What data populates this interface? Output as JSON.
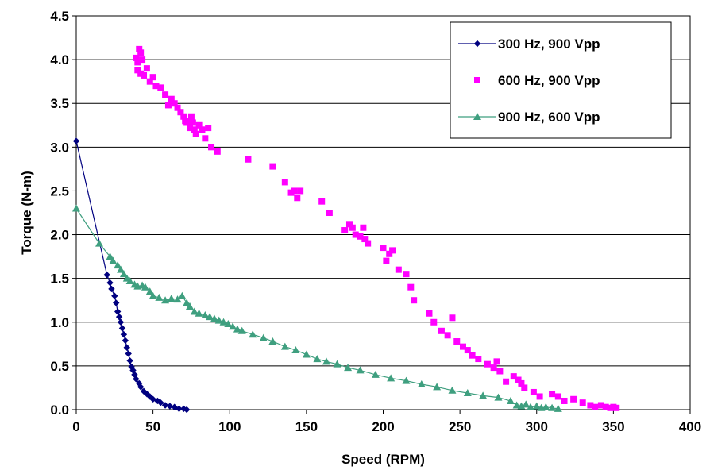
{
  "chart_data": {
    "type": "scatter",
    "title": "",
    "xlabel": "Speed (RPM)",
    "ylabel": "Torque (N-m)",
    "xlim": [
      0,
      400
    ],
    "ylim": [
      0,
      4.5
    ],
    "x_ticks": [
      "0",
      "50",
      "100",
      "150",
      "200",
      "250",
      "300",
      "350",
      "400"
    ],
    "y_ticks": [
      "0.0",
      "0.5",
      "1.0",
      "1.5",
      "2.0",
      "2.5",
      "3.0",
      "3.5",
      "4.0",
      "4.5"
    ],
    "grid": "horizontal",
    "legend_position": "top-right",
    "series": [
      {
        "name": "300 Hz, 900 Vpp",
        "color": "#000080",
        "marker": "diamond",
        "line": true,
        "points": [
          [
            0,
            3.07
          ],
          [
            20,
            1.54
          ],
          [
            22,
            1.45
          ],
          [
            23,
            1.38
          ],
          [
            25,
            1.3
          ],
          [
            26,
            1.22
          ],
          [
            27,
            1.12
          ],
          [
            28,
            1.06
          ],
          [
            29,
            1.0
          ],
          [
            30,
            0.93
          ],
          [
            31,
            0.86
          ],
          [
            32,
            0.79
          ],
          [
            33,
            0.71
          ],
          [
            34,
            0.64
          ],
          [
            35,
            0.56
          ],
          [
            36,
            0.49
          ],
          [
            37,
            0.45
          ],
          [
            38,
            0.4
          ],
          [
            39,
            0.35
          ],
          [
            41,
            0.3
          ],
          [
            42,
            0.26
          ],
          [
            44,
            0.21
          ],
          [
            46,
            0.18
          ],
          [
            48,
            0.15
          ],
          [
            50,
            0.12
          ],
          [
            53,
            0.1
          ],
          [
            55,
            0.08
          ],
          [
            58,
            0.05
          ],
          [
            61,
            0.04
          ],
          [
            64,
            0.03
          ],
          [
            67,
            0.01
          ],
          [
            70,
            0.01
          ],
          [
            72,
            0.0
          ]
        ]
      },
      {
        "name": "600 Hz, 900 Vpp",
        "color": "#ff00ff",
        "marker": "square",
        "line": false,
        "points": [
          [
            39,
            4.02
          ],
          [
            40,
            3.97
          ],
          [
            41,
            4.12
          ],
          [
            42,
            4.08
          ],
          [
            43,
            4.0
          ],
          [
            40,
            3.88
          ],
          [
            42,
            3.84
          ],
          [
            44,
            3.82
          ],
          [
            46,
            3.9
          ],
          [
            48,
            3.75
          ],
          [
            50,
            3.8
          ],
          [
            52,
            3.7
          ],
          [
            55,
            3.68
          ],
          [
            58,
            3.6
          ],
          [
            60,
            3.48
          ],
          [
            62,
            3.55
          ],
          [
            64,
            3.5
          ],
          [
            66,
            3.45
          ],
          [
            68,
            3.4
          ],
          [
            70,
            3.35
          ],
          [
            71,
            3.3
          ],
          [
            72,
            3.28
          ],
          [
            74,
            3.22
          ],
          [
            75,
            3.35
          ],
          [
            76,
            3.28
          ],
          [
            77,
            3.2
          ],
          [
            78,
            3.15
          ],
          [
            80,
            3.25
          ],
          [
            82,
            3.2
          ],
          [
            84,
            3.1
          ],
          [
            86,
            3.22
          ],
          [
            88,
            3.0
          ],
          [
            92,
            2.95
          ],
          [
            112,
            2.86
          ],
          [
            128,
            2.78
          ],
          [
            136,
            2.6
          ],
          [
            140,
            2.48
          ],
          [
            142,
            2.5
          ],
          [
            144,
            2.42
          ],
          [
            146,
            2.5
          ],
          [
            160,
            2.38
          ],
          [
            165,
            2.25
          ],
          [
            175,
            2.05
          ],
          [
            178,
            2.12
          ],
          [
            180,
            2.08
          ],
          [
            182,
            2.0
          ],
          [
            185,
            1.98
          ],
          [
            187,
            2.08
          ],
          [
            188,
            1.95
          ],
          [
            190,
            1.9
          ],
          [
            200,
            1.85
          ],
          [
            202,
            1.7
          ],
          [
            204,
            1.78
          ],
          [
            206,
            1.82
          ],
          [
            210,
            1.6
          ],
          [
            215,
            1.55
          ],
          [
            218,
            1.4
          ],
          [
            220,
            1.25
          ],
          [
            230,
            1.1
          ],
          [
            233,
            1.0
          ],
          [
            238,
            0.9
          ],
          [
            242,
            0.85
          ],
          [
            245,
            1.05
          ],
          [
            248,
            0.78
          ],
          [
            252,
            0.72
          ],
          [
            255,
            0.68
          ],
          [
            258,
            0.62
          ],
          [
            262,
            0.58
          ],
          [
            268,
            0.52
          ],
          [
            272,
            0.48
          ],
          [
            274,
            0.55
          ],
          [
            276,
            0.44
          ],
          [
            280,
            0.32
          ],
          [
            285,
            0.38
          ],
          [
            288,
            0.34
          ],
          [
            290,
            0.3
          ],
          [
            292,
            0.25
          ],
          [
            298,
            0.2
          ],
          [
            302,
            0.15
          ],
          [
            310,
            0.18
          ],
          [
            314,
            0.15
          ],
          [
            318,
            0.1
          ],
          [
            324,
            0.12
          ],
          [
            330,
            0.08
          ],
          [
            335,
            0.05
          ],
          [
            338,
            0.03
          ],
          [
            342,
            0.05
          ],
          [
            345,
            0.03
          ],
          [
            348,
            0.02
          ],
          [
            350,
            0.03
          ],
          [
            352,
            0.02
          ]
        ]
      },
      {
        "name": "900 Hz, 600 Vpp",
        "color": "#3f9f7f",
        "marker": "triangle",
        "line": true,
        "points": [
          [
            0,
            2.3
          ],
          [
            15,
            1.9
          ],
          [
            22,
            1.75
          ],
          [
            24,
            1.7
          ],
          [
            27,
            1.65
          ],
          [
            29,
            1.6
          ],
          [
            31,
            1.55
          ],
          [
            33,
            1.5
          ],
          [
            35,
            1.47
          ],
          [
            38,
            1.43
          ],
          [
            40,
            1.41
          ],
          [
            43,
            1.42
          ],
          [
            45,
            1.4
          ],
          [
            48,
            1.35
          ],
          [
            50,
            1.3
          ],
          [
            54,
            1.28
          ],
          [
            58,
            1.25
          ],
          [
            62,
            1.27
          ],
          [
            66,
            1.26
          ],
          [
            69,
            1.3
          ],
          [
            72,
            1.22
          ],
          [
            74,
            1.18
          ],
          [
            77,
            1.12
          ],
          [
            80,
            1.1
          ],
          [
            84,
            1.08
          ],
          [
            87,
            1.06
          ],
          [
            90,
            1.04
          ],
          [
            93,
            1.02
          ],
          [
            96,
            1.0
          ],
          [
            99,
            0.98
          ],
          [
            102,
            0.95
          ],
          [
            105,
            0.92
          ],
          [
            108,
            0.9
          ],
          [
            115,
            0.86
          ],
          [
            122,
            0.82
          ],
          [
            128,
            0.78
          ],
          [
            136,
            0.72
          ],
          [
            143,
            0.68
          ],
          [
            150,
            0.63
          ],
          [
            157,
            0.58
          ],
          [
            163,
            0.55
          ],
          [
            170,
            0.52
          ],
          [
            177,
            0.48
          ],
          [
            185,
            0.45
          ],
          [
            195,
            0.4
          ],
          [
            205,
            0.36
          ],
          [
            215,
            0.33
          ],
          [
            225,
            0.29
          ],
          [
            235,
            0.26
          ],
          [
            245,
            0.22
          ],
          [
            255,
            0.19
          ],
          [
            265,
            0.16
          ],
          [
            275,
            0.14
          ],
          [
            283,
            0.1
          ],
          [
            287,
            0.05
          ],
          [
            290,
            0.04
          ],
          [
            293,
            0.06
          ],
          [
            296,
            0.03
          ],
          [
            300,
            0.04
          ],
          [
            303,
            0.02
          ],
          [
            306,
            0.03
          ],
          [
            310,
            0.02
          ],
          [
            314,
            0.01
          ]
        ]
      }
    ]
  }
}
